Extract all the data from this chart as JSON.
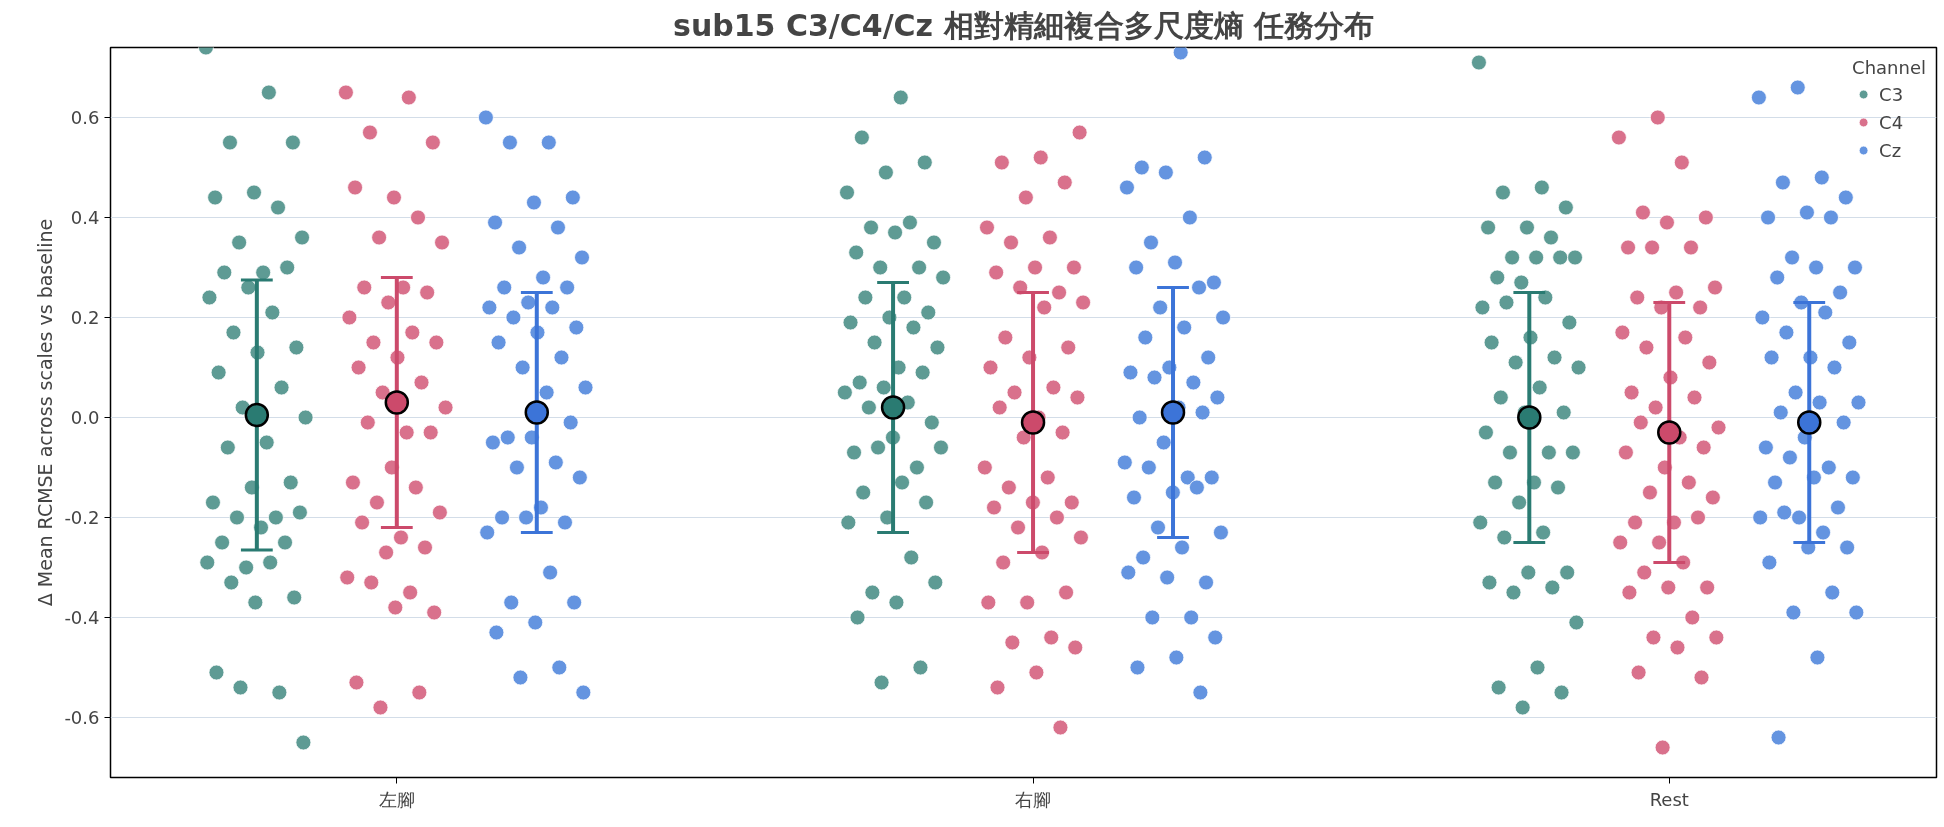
{
  "chart_data": {
    "type": "scatter",
    "title": "sub15 C3/C4/Cz 相對精細複合多尺度熵 任務分布",
    "ylabel": "Δ Mean RCMSE across scales vs baseline",
    "legend_title": "Channel",
    "legend": "top right",
    "grid": "y",
    "marker": "circle",
    "categories": [
      "左腳",
      "右腳",
      "Rest"
    ],
    "ylim": [
      -0.72,
      0.74
    ],
    "yticks": [
      -0.6,
      -0.4,
      -0.2,
      {
        "value": 0,
        "label": "0.0"
      },
      0.2,
      0.4,
      0.6
    ],
    "series": [
      {
        "name": "C3",
        "color": "#5e9b94",
        "x": [
          "左腳",
          "左腳",
          "左腳",
          "左腳",
          "左腳",
          "左腳",
          "左腳",
          "左腳",
          "左腳",
          "左腳",
          "左腳",
          "左腳",
          "左腳",
          "左腳",
          "左腳",
          "左腳",
          "左腳",
          "左腳",
          "左腳",
          "左腳",
          "左腳",
          "左腳",
          "左腳",
          "左腳",
          "左腳",
          "左腳",
          "左腳",
          "左腳",
          "左腳",
          "左腳",
          "左腳",
          "左腳",
          "左腳",
          "左腳",
          "左腳",
          "左腳",
          "左腳",
          "左腳",
          "左腳",
          "左腳",
          "左腳",
          "左腳",
          "左腳",
          "右腳",
          "右腳",
          "右腳",
          "右腳",
          "右腳",
          "右腳",
          "右腳",
          "右腳",
          "右腳",
          "右腳",
          "右腳",
          "右腳",
          "右腳",
          "右腳",
          "右腳",
          "右腳",
          "右腳",
          "右腳",
          "右腳",
          "右腳",
          "右腳",
          "右腳",
          "右腳",
          "右腳",
          "右腳",
          "右腳",
          "右腳",
          "右腳",
          "右腳",
          "右腳",
          "右腳",
          "右腳",
          "右腳",
          "右腳",
          "右腳",
          "右腳",
          "右腳",
          "右腳",
          "右腳",
          "右腳",
          "右腳",
          "右腳",
          "右腳",
          "右腳",
          "右腳",
          "右腳",
          "Rest",
          "Rest",
          "Rest",
          "Rest",
          "Rest",
          "Rest",
          "Rest",
          "Rest",
          "Rest",
          "Rest",
          "Rest",
          "Rest",
          "Rest",
          "Rest",
          "Rest",
          "Rest",
          "Rest",
          "Rest",
          "Rest",
          "Rest",
          "Rest",
          "Rest",
          "Rest",
          "Rest",
          "Rest",
          "Rest",
          "Rest",
          "Rest",
          "Rest",
          "Rest",
          "Rest",
          "Rest",
          "Rest",
          "Rest",
          "Rest",
          "Rest",
          "Rest",
          "Rest",
          "Rest",
          "Rest",
          "Rest",
          "Rest",
          "Rest",
          "Rest",
          "Rest",
          "Rest",
          "Rest"
        ],
        "values": [
          0.74,
          0.65,
          0.55,
          0.55,
          0.45,
          0.44,
          0.42,
          0.35,
          0.36,
          0.29,
          0.29,
          0.3,
          0.26,
          0.24,
          0.21,
          0.17,
          0.14,
          0.13,
          0.09,
          0.06,
          0.02,
          0.0,
          -0.05,
          -0.06,
          -0.13,
          -0.14,
          -0.17,
          -0.2,
          -0.2,
          -0.19,
          -0.22,
          -0.25,
          -0.25,
          -0.3,
          -0.29,
          -0.29,
          -0.33,
          -0.36,
          -0.37,
          -0.51,
          -0.55,
          -0.54,
          -0.65,
          0.64,
          0.56,
          0.51,
          0.49,
          0.45,
          0.39,
          0.38,
          0.35,
          0.37,
          0.33,
          0.3,
          0.3,
          0.28,
          0.24,
          0.24,
          0.21,
          0.2,
          0.19,
          0.18,
          0.15,
          0.14,
          0.1,
          0.07,
          0.09,
          0.06,
          0.05,
          0.03,
          0.02,
          -0.01,
          -0.04,
          -0.07,
          -0.1,
          -0.06,
          -0.06,
          -0.13,
          -0.15,
          -0.17,
          -0.2,
          -0.21,
          -0.28,
          -0.35,
          -0.33,
          -0.37,
          -0.4,
          -0.5,
          -0.53,
          0.71,
          0.46,
          0.45,
          0.42,
          0.38,
          0.38,
          0.36,
          0.32,
          0.32,
          0.32,
          0.28,
          0.32,
          0.27,
          0.22,
          0.24,
          0.23,
          0.19,
          0.16,
          0.15,
          0.12,
          0.11,
          0.1,
          0.06,
          0.04,
          0.01,
          0.01,
          -0.03,
          -0.07,
          -0.07,
          -0.07,
          -0.13,
          -0.13,
          -0.14,
          -0.17,
          -0.21,
          -0.23,
          -0.24,
          -0.31,
          -0.31,
          -0.33,
          -0.34,
          -0.35,
          -0.41,
          -0.5,
          -0.54,
          -0.55,
          -0.58
        ]
      },
      {
        "name": "C4",
        "color": "#d9718c",
        "x": [
          "左腳",
          "左腳",
          "左腳",
          "左腳",
          "左腳",
          "左腳",
          "左腳",
          "左腳",
          "左腳",
          "左腳",
          "左腳",
          "左腳",
          "左腳",
          "左腳",
          "左腳",
          "左腳",
          "左腳",
          "左腳",
          "左腳",
          "左腳",
          "左腳",
          "左腳",
          "左腳",
          "左腳",
          "左腳",
          "左腳",
          "左腳",
          "左腳",
          "左腳",
          "左腳",
          "左腳",
          "左腳",
          "左腳",
          "左腳",
          "左腳",
          "左腳",
          "左腳",
          "左腳",
          "左腳",
          "左腳",
          "左腳",
          "左腳",
          "右腳",
          "右腳",
          "右腳",
          "右腳",
          "右腳",
          "右腳",
          "右腳",
          "右腳",
          "右腳",
          "右腳",
          "右腳",
          "右腳",
          "右腳",
          "右腳",
          "右腳",
          "右腳",
          "右腳",
          "右腳",
          "右腳",
          "右腳",
          "右腳",
          "右腳",
          "右腳",
          "右腳",
          "右腳",
          "右腳",
          "右腳",
          "右腳",
          "右腳",
          "右腳",
          "右腳",
          "右腳",
          "右腳",
          "右腳",
          "右腳",
          "右腳",
          "右腳",
          "右腳",
          "右腳",
          "右腳",
          "右腳",
          "右腳",
          "右腳",
          "右腳",
          "右腳",
          "右腳",
          "Rest",
          "Rest",
          "Rest",
          "Rest",
          "Rest",
          "Rest",
          "Rest",
          "Rest",
          "Rest",
          "Rest",
          "Rest",
          "Rest",
          "Rest",
          "Rest",
          "Rest",
          "Rest",
          "Rest",
          "Rest",
          "Rest",
          "Rest",
          "Rest",
          "Rest",
          "Rest",
          "Rest",
          "Rest",
          "Rest",
          "Rest",
          "Rest",
          "Rest",
          "Rest",
          "Rest",
          "Rest",
          "Rest",
          "Rest",
          "Rest",
          "Rest",
          "Rest",
          "Rest",
          "Rest",
          "Rest",
          "Rest",
          "Rest",
          "Rest",
          "Rest",
          "Rest",
          "Rest",
          "Rest",
          "Rest"
        ],
        "values": [
          0.65,
          0.64,
          0.57,
          0.55,
          0.44,
          0.46,
          0.4,
          0.36,
          0.35,
          0.26,
          0.26,
          0.25,
          0.23,
          0.2,
          0.17,
          0.15,
          0.15,
          0.12,
          0.1,
          0.07,
          0.05,
          0.02,
          -0.03,
          -0.01,
          -0.03,
          -0.1,
          -0.13,
          -0.14,
          -0.17,
          -0.19,
          -0.24,
          -0.21,
          -0.26,
          -0.27,
          -0.32,
          -0.35,
          -0.33,
          -0.39,
          -0.38,
          -0.53,
          -0.55,
          -0.58,
          0.57,
          0.52,
          0.51,
          0.47,
          0.44,
          0.38,
          0.36,
          0.35,
          0.3,
          0.3,
          0.29,
          0.25,
          0.26,
          0.23,
          0.22,
          0.16,
          0.14,
          0.12,
          0.1,
          0.06,
          0.05,
          0.04,
          0.0,
          0.02,
          -0.03,
          -0.04,
          -0.1,
          -0.12,
          -0.14,
          -0.17,
          -0.17,
          -0.18,
          -0.2,
          -0.22,
          -0.24,
          -0.27,
          -0.29,
          -0.35,
          -0.37,
          -0.37,
          -0.44,
          -0.45,
          -0.46,
          -0.51,
          -0.54,
          -0.62,
          0.6,
          0.56,
          0.51,
          0.41,
          0.4,
          0.39,
          0.34,
          0.34,
          0.34,
          0.26,
          0.25,
          0.24,
          0.22,
          0.22,
          0.17,
          0.16,
          0.14,
          0.11,
          0.08,
          0.05,
          0.04,
          0.02,
          -0.02,
          -0.04,
          -0.01,
          -0.06,
          -0.1,
          -0.07,
          -0.13,
          -0.15,
          -0.16,
          -0.21,
          -0.21,
          -0.2,
          -0.25,
          -0.25,
          -0.29,
          -0.31,
          -0.34,
          -0.34,
          -0.35,
          -0.4,
          -0.44,
          -0.44,
          -0.46,
          -0.51,
          -0.52,
          -0.66
        ]
      },
      {
        "name": "Cz",
        "color": "#6494e0",
        "x": [
          "左腳",
          "左腳",
          "左腳",
          "左腳",
          "左腳",
          "左腳",
          "左腳",
          "左腳",
          "左腳",
          "左腳",
          "左腳",
          "左腳",
          "左腳",
          "左腳",
          "左腳",
          "左腳",
          "左腳",
          "左腳",
          "左腳",
          "左腳",
          "左腳",
          "左腳",
          "左腳",
          "左腳",
          "左腳",
          "左腳",
          "左腳",
          "左腳",
          "左腳",
          "左腳",
          "左腳",
          "左腳",
          "左腳",
          "左腳",
          "左腳",
          "左腳",
          "左腳",
          "左腳",
          "左腳",
          "左腳",
          "左腳",
          "左腳",
          "左腳",
          "右腳",
          "右腳",
          "右腳",
          "右腳",
          "右腳",
          "右腳",
          "右腳",
          "右腳",
          "右腳",
          "右腳",
          "右腳",
          "右腳",
          "右腳",
          "右腳",
          "右腳",
          "右腳",
          "右腳",
          "右腳",
          "右腳",
          "右腳",
          "右腳",
          "右腳",
          "右腳",
          "右腳",
          "右腳",
          "右腳",
          "右腳",
          "右腳",
          "右腳",
          "右腳",
          "右腳",
          "右腳",
          "右腳",
          "右腳",
          "右腳",
          "右腳",
          "右腳",
          "右腳",
          "右腳",
          "右腳",
          "右腳",
          "右腳",
          "右腳",
          "右腳",
          "右腳",
          "Rest",
          "Rest",
          "Rest",
          "Rest",
          "Rest",
          "Rest",
          "Rest",
          "Rest",
          "Rest",
          "Rest",
          "Rest",
          "Rest",
          "Rest",
          "Rest",
          "Rest",
          "Rest",
          "Rest",
          "Rest",
          "Rest",
          "Rest",
          "Rest",
          "Rest",
          "Rest",
          "Rest",
          "Rest",
          "Rest",
          "Rest",
          "Rest",
          "Rest",
          "Rest",
          "Rest",
          "Rest",
          "Rest",
          "Rest",
          "Rest",
          "Rest",
          "Rest",
          "Rest",
          "Rest",
          "Rest",
          "Rest",
          "Rest",
          "Rest",
          "Rest",
          "Rest",
          "Rest"
        ],
        "values": [
          0.6,
          0.55,
          0.55,
          0.44,
          0.43,
          0.39,
          0.38,
          0.34,
          0.32,
          0.28,
          0.26,
          0.26,
          0.23,
          0.22,
          0.22,
          0.2,
          0.18,
          0.17,
          0.15,
          0.12,
          0.1,
          0.06,
          0.05,
          -0.04,
          -0.01,
          -0.04,
          -0.05,
          -0.09,
          -0.1,
          -0.12,
          -0.18,
          -0.2,
          -0.21,
          -0.2,
          -0.23,
          -0.31,
          -0.37,
          -0.37,
          -0.41,
          -0.43,
          -0.5,
          -0.52,
          -0.55,
          0.73,
          0.5,
          0.52,
          0.49,
          0.46,
          0.4,
          0.35,
          0.27,
          0.31,
          0.3,
          0.26,
          0.22,
          0.2,
          0.18,
          0.16,
          0.12,
          0.1,
          0.09,
          0.07,
          0.08,
          0.04,
          0.02,
          0.0,
          0.01,
          -0.05,
          -0.09,
          -0.12,
          -0.1,
          -0.12,
          -0.15,
          -0.16,
          -0.14,
          -0.22,
          -0.23,
          -0.26,
          -0.28,
          -0.33,
          -0.32,
          -0.31,
          -0.4,
          -0.4,
          -0.44,
          -0.48,
          -0.5,
          -0.55,
          0.66,
          0.64,
          0.48,
          0.47,
          0.44,
          0.41,
          0.4,
          0.4,
          0.32,
          0.3,
          0.3,
          0.28,
          0.25,
          0.23,
          0.2,
          0.21,
          0.17,
          0.15,
          0.12,
          0.12,
          0.1,
          0.05,
          0.03,
          0.03,
          0.01,
          -0.01,
          -0.04,
          -0.06,
          -0.1,
          -0.08,
          -0.12,
          -0.12,
          -0.13,
          -0.18,
          -0.2,
          -0.2,
          -0.23,
          -0.19,
          -0.26,
          -0.26,
          -0.29,
          -0.35,
          -0.39,
          -0.39,
          -0.48,
          -0.64
        ]
      },
      {
        "color": "#2a7b72",
        "x": [
          "左腳",
          "右腳",
          "Rest"
        ],
        "values": [
          0.005,
          0.02,
          0.0
        ],
        "errors": [
          0.27,
          0.25,
          0.25
        ]
      },
      {
        "color": "#cc4a6b",
        "x": [
          "左腳",
          "右腳",
          "Rest"
        ],
        "values": [
          0.03,
          -0.01,
          -0.03
        ],
        "errors": [
          0.25,
          0.26,
          0.26
        ]
      },
      {
        "color": "#3c74d8",
        "x": [
          "左腳",
          "右腳",
          "Rest"
        ],
        "values": [
          0.01,
          0.01,
          -0.01
        ],
        "errors": [
          0.24,
          0.25,
          0.24
        ]
      }
    ]
  }
}
